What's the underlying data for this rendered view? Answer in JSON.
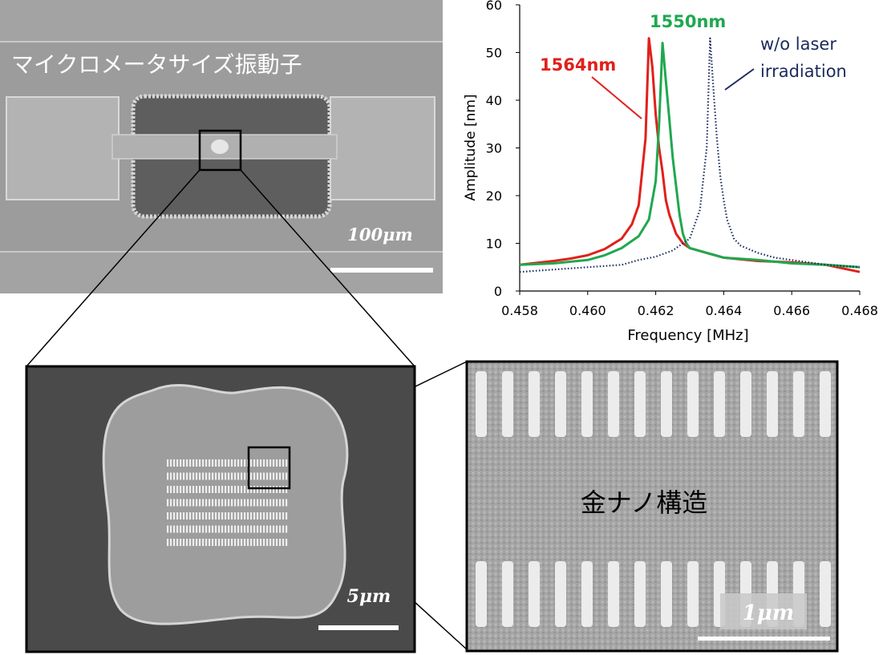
{
  "panels": {
    "sem_overview": {
      "caption": "マイクロメータサイズ振動子",
      "scale_label": "100μm"
    },
    "sem_zoom1": {
      "scale_label": "5μm"
    },
    "sem_zoom2": {
      "caption": "金ナノ構造",
      "scale_label": "1μm"
    }
  },
  "chart_data": {
    "type": "line",
    "xlabel": "Frequency [MHz]",
    "ylabel": "Amplitude [nm]",
    "xlim": [
      0.458,
      0.468
    ],
    "ylim": [
      0,
      60
    ],
    "x_ticks": [
      "0.458",
      "0.460",
      "0.462",
      "0.464",
      "0.466",
      "0.468"
    ],
    "y_ticks": [
      "0",
      "10",
      "20",
      "30",
      "40",
      "50",
      "60"
    ],
    "series": [
      {
        "name": "1564nm",
        "color": "#e0201b",
        "style": "solid",
        "x": [
          0.458,
          0.459,
          0.4595,
          0.46,
          0.4605,
          0.461,
          0.4613,
          0.4615,
          0.4617,
          0.4618,
          0.4619,
          0.462,
          0.4621,
          0.4622,
          0.4623,
          0.4624,
          0.4626,
          0.4628,
          0.463,
          0.4635,
          0.464,
          0.465,
          0.466,
          0.467,
          0.468
        ],
        "y": [
          5.5,
          6.3,
          6.8,
          7.5,
          8.8,
          11,
          14,
          18,
          32,
          53,
          47,
          37,
          30,
          25,
          19,
          16,
          12,
          10,
          9,
          8,
          7,
          6.3,
          6,
          5.5,
          4
        ]
      },
      {
        "name": "1550nm",
        "color": "#1fa84f",
        "style": "solid",
        "x": [
          0.458,
          0.459,
          0.46,
          0.4605,
          0.461,
          0.4615,
          0.4618,
          0.462,
          0.4621,
          0.4622,
          0.4623,
          0.4624,
          0.4625,
          0.4626,
          0.4627,
          0.4628,
          0.4629,
          0.463,
          0.4635,
          0.464,
          0.465,
          0.466,
          0.467,
          0.468
        ],
        "y": [
          5.5,
          5.8,
          6.5,
          7.5,
          9,
          11.5,
          15,
          23,
          35,
          52,
          44,
          36,
          28,
          22,
          16,
          12,
          10,
          9,
          8,
          7,
          6.5,
          5.8,
          5.5,
          5
        ]
      },
      {
        "name": "w/o laser irradiation",
        "color": "#1b2a5e",
        "style": "dotted",
        "x": [
          0.458,
          0.459,
          0.46,
          0.461,
          0.4615,
          0.462,
          0.4625,
          0.463,
          0.4633,
          0.4635,
          0.4636,
          0.4637,
          0.4638,
          0.4639,
          0.464,
          0.4641,
          0.4643,
          0.4645,
          0.465,
          0.4655,
          0.466,
          0.467,
          0.468
        ],
        "y": [
          4,
          4.5,
          5,
          5.5,
          6.5,
          7.2,
          8.5,
          11,
          17,
          30,
          53,
          42,
          32,
          24,
          19,
          15,
          11,
          9.5,
          8,
          7,
          6.5,
          5.5,
          5
        ]
      }
    ],
    "annotations": [
      "1564nm",
      "1550nm",
      "w/o laser",
      "irradiation"
    ]
  }
}
